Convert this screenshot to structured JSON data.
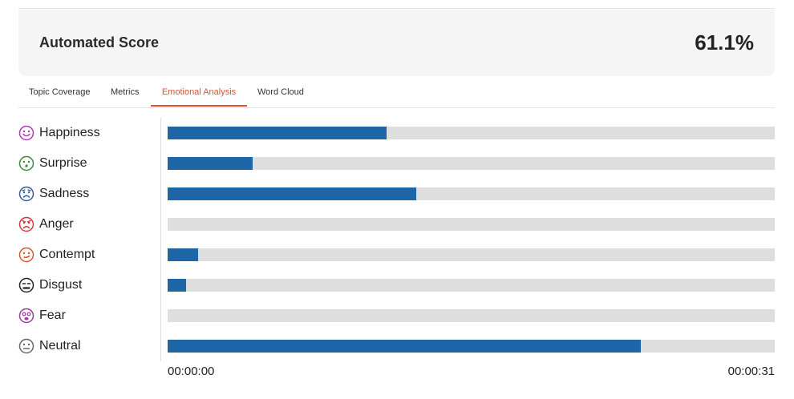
{
  "score": {
    "label": "Automated Score",
    "value": "61.1%"
  },
  "tabs": [
    {
      "label": "Topic Coverage",
      "active": false
    },
    {
      "label": "Metrics",
      "active": false
    },
    {
      "label": "Emotional Analysis",
      "active": true
    },
    {
      "label": "Word Cloud",
      "active": false
    }
  ],
  "chart_data": {
    "type": "bar",
    "orientation": "horizontal",
    "categories": [
      "Happiness",
      "Surprise",
      "Sadness",
      "Anger",
      "Contempt",
      "Disgust",
      "Fear",
      "Neutral"
    ],
    "values": [
      0.36,
      0.14,
      0.41,
      0.0,
      0.05,
      0.03,
      0.0,
      0.78
    ],
    "icons": [
      "happiness-face-icon",
      "surprise-face-icon",
      "sadness-face-icon",
      "anger-face-icon",
      "contempt-face-icon",
      "disgust-face-icon",
      "fear-face-icon",
      "neutral-face-icon"
    ],
    "icon_colors": [
      "#b03bb5",
      "#3c8a3c",
      "#2d5fa0",
      "#d8343d",
      "#e0532e",
      "#222222",
      "#9b3aa0",
      "#666666"
    ],
    "bar_color": "#1f66a6",
    "track_color": "#dedede",
    "xlim": [
      0,
      1
    ],
    "x_start_label": "00:00:00",
    "x_end_label": "00:00:31"
  }
}
